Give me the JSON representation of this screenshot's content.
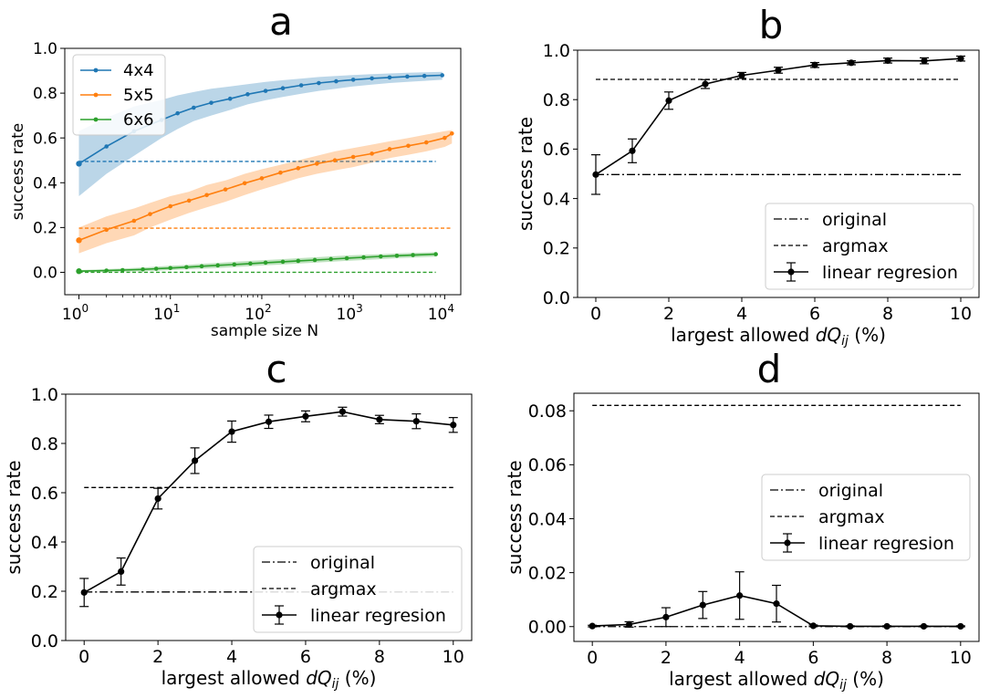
{
  "panels": {
    "a": {
      "letter": "a"
    },
    "b": {
      "letter": "b"
    },
    "c": {
      "letter": "c"
    },
    "d": {
      "letter": "d"
    }
  },
  "chart_data": [
    {
      "id": "a",
      "type": "line",
      "xscale": "log",
      "xlabel": "sample size N",
      "ylabel": "success rate",
      "xlim": [
        0.7,
        15000
      ],
      "ylim": [
        -0.1,
        1.0
      ],
      "xticks": [
        {
          "value": 1,
          "base": "10",
          "exp": "0"
        },
        {
          "value": 10,
          "base": "10",
          "exp": "1"
        },
        {
          "value": 100,
          "base": "10",
          "exp": "2"
        },
        {
          "value": 1000,
          "base": "10",
          "exp": "3"
        },
        {
          "value": 10000,
          "base": "10",
          "exp": "4"
        }
      ],
      "yticks": [
        "0.0",
        "0.2",
        "0.4",
        "0.6",
        "0.8",
        "1.0"
      ],
      "legend_position": "top-left",
      "grid": false,
      "series": [
        {
          "name": "4x4",
          "color": "#1f77b4",
          "x": [
            1,
            2,
            4,
            8,
            12,
            18,
            28,
            45,
            70,
            110,
            170,
            270,
            420,
            650,
            1000,
            1600,
            2500,
            3900,
            6000,
            9400
          ],
          "y": [
            0.485,
            0.562,
            0.63,
            0.68,
            0.71,
            0.735,
            0.757,
            0.775,
            0.795,
            0.81,
            0.822,
            0.835,
            0.845,
            0.853,
            0.86,
            0.866,
            0.87,
            0.874,
            0.877,
            0.88
          ],
          "band_low": [
            0.34,
            0.44,
            0.52,
            0.6,
            0.64,
            0.675,
            0.7,
            0.725,
            0.75,
            0.768,
            0.783,
            0.797,
            0.81,
            0.82,
            0.83,
            0.838,
            0.845,
            0.85,
            0.855,
            0.86
          ],
          "band_high": [
            0.63,
            0.69,
            0.74,
            0.77,
            0.79,
            0.805,
            0.82,
            0.83,
            0.84,
            0.85,
            0.858,
            0.865,
            0.872,
            0.877,
            0.881,
            0.885,
            0.888,
            0.891,
            0.893,
            0.895
          ],
          "baseline": 0.495,
          "baseline_xrange": [
            1,
            8000
          ]
        },
        {
          "name": "5x5",
          "color": "#ff7f0e",
          "x": [
            1,
            2,
            4,
            6,
            10,
            16,
            25,
            40,
            65,
            100,
            160,
            250,
            400,
            630,
            1000,
            1600,
            2500,
            4000,
            6300,
            10000,
            12000
          ],
          "y": [
            0.143,
            0.19,
            0.23,
            0.26,
            0.295,
            0.32,
            0.345,
            0.37,
            0.398,
            0.42,
            0.445,
            0.465,
            0.485,
            0.5,
            0.515,
            0.53,
            0.55,
            0.565,
            0.58,
            0.6,
            0.62
          ],
          "band_low": [
            0.085,
            0.13,
            0.165,
            0.2,
            0.235,
            0.265,
            0.29,
            0.315,
            0.345,
            0.37,
            0.395,
            0.42,
            0.44,
            0.455,
            0.47,
            0.49,
            0.51,
            0.525,
            0.54,
            0.56,
            0.575
          ],
          "band_high": [
            0.2,
            0.25,
            0.285,
            0.31,
            0.34,
            0.36,
            0.39,
            0.41,
            0.44,
            0.46,
            0.48,
            0.5,
            0.52,
            0.54,
            0.555,
            0.57,
            0.585,
            0.6,
            0.615,
            0.63,
            0.635
          ],
          "baseline": 0.197,
          "baseline_xrange": [
            1,
            12000
          ]
        },
        {
          "name": "6x6",
          "color": "#2ca02c",
          "x": [
            1,
            2,
            3,
            5,
            7,
            10,
            15,
            22,
            33,
            50,
            75,
            110,
            170,
            250,
            380,
            570,
            850,
            1300,
            2000,
            3000,
            4500,
            8000
          ],
          "y": [
            0.005,
            0.008,
            0.01,
            0.013,
            0.016,
            0.019,
            0.023,
            0.027,
            0.031,
            0.035,
            0.039,
            0.043,
            0.047,
            0.051,
            0.055,
            0.059,
            0.063,
            0.067,
            0.071,
            0.074,
            0.077,
            0.081
          ],
          "band_low": [
            0.0,
            0.002,
            0.003,
            0.005,
            0.007,
            0.01,
            0.013,
            0.016,
            0.019,
            0.023,
            0.027,
            0.031,
            0.035,
            0.039,
            0.043,
            0.047,
            0.051,
            0.055,
            0.059,
            0.063,
            0.066,
            0.07
          ],
          "band_high": [
            0.01,
            0.014,
            0.017,
            0.021,
            0.025,
            0.029,
            0.033,
            0.038,
            0.042,
            0.047,
            0.051,
            0.055,
            0.059,
            0.063,
            0.067,
            0.071,
            0.075,
            0.078,
            0.081,
            0.084,
            0.087,
            0.09
          ],
          "baseline": 0.0,
          "baseline_xrange": [
            1,
            8000
          ]
        }
      ]
    },
    {
      "id": "b",
      "type": "line",
      "xlabel_text": "largest allowed ",
      "xlabel_var": "dQ",
      "xlabel_sub": "ij",
      "xlabel_tail": " (%)",
      "ylabel": "success rate",
      "xlim": [
        -0.5,
        10.5
      ],
      "ylim": [
        0.0,
        1.0
      ],
      "xticks": [
        "0",
        "2",
        "4",
        "6",
        "8",
        "10"
      ],
      "yticks": [
        "0.0",
        "0.2",
        "0.4",
        "0.6",
        "0.8",
        "1.0"
      ],
      "legend_position": "bottom-right",
      "grid": false,
      "lines": {
        "original": 0.497,
        "argmax": 0.882,
        "xrange": [
          0,
          10
        ]
      },
      "legend": [
        "original",
        "argmax",
        "linear regresion"
      ],
      "series": [
        {
          "name": "linear regresion",
          "x": [
            0,
            1,
            2,
            3,
            4,
            5,
            6,
            7,
            8,
            9,
            10
          ],
          "y": [
            0.497,
            0.593,
            0.796,
            0.863,
            0.898,
            0.919,
            0.94,
            0.949,
            0.958,
            0.957,
            0.966
          ],
          "err": [
            0.08,
            0.048,
            0.035,
            0.018,
            0.012,
            0.012,
            0.01,
            0.008,
            0.01,
            0.012,
            0.01
          ]
        }
      ]
    },
    {
      "id": "c",
      "type": "line",
      "xlabel_text": "largest allowed ",
      "xlabel_var": "dQ",
      "xlabel_sub": "ij",
      "xlabel_tail": " (%)",
      "ylabel": "success rate",
      "xlim": [
        -0.5,
        10.5
      ],
      "ylim": [
        0.0,
        1.0
      ],
      "xticks": [
        "0",
        "2",
        "4",
        "6",
        "8",
        "10"
      ],
      "yticks": [
        "0.0",
        "0.2",
        "0.4",
        "0.6",
        "0.8",
        "1.0"
      ],
      "legend_position": "bottom-right",
      "grid": false,
      "lines": {
        "original": 0.197,
        "argmax": 0.621,
        "xrange": [
          0,
          10
        ]
      },
      "legend": [
        "original",
        "argmax",
        "linear regresion"
      ],
      "series": [
        {
          "name": "linear regresion",
          "x": [
            0,
            1,
            2,
            3,
            4,
            5,
            6,
            7,
            8,
            9,
            10
          ],
          "y": [
            0.195,
            0.28,
            0.576,
            0.73,
            0.848,
            0.888,
            0.91,
            0.929,
            0.897,
            0.89,
            0.875
          ],
          "err": [
            0.057,
            0.055,
            0.042,
            0.052,
            0.043,
            0.027,
            0.022,
            0.018,
            0.017,
            0.03,
            0.03
          ]
        }
      ]
    },
    {
      "id": "d",
      "type": "line",
      "xlabel_text": "largest allowed ",
      "xlabel_var": "dQ",
      "xlabel_sub": "ij",
      "xlabel_tail": " (%)",
      "ylabel": "success rate",
      "xlim": [
        -0.5,
        10.5
      ],
      "ylim": [
        -0.0055,
        0.0865
      ],
      "xticks": [
        "0",
        "2",
        "4",
        "6",
        "8",
        "10"
      ],
      "yticks": [
        "0.00",
        "0.02",
        "0.04",
        "0.06",
        "0.08"
      ],
      "legend_position": "center-right",
      "grid": false,
      "lines": {
        "original": 0.0,
        "argmax": 0.082,
        "xrange": [
          0,
          10
        ]
      },
      "legend": [
        "original",
        "argmax",
        "linear regresion"
      ],
      "series": [
        {
          "name": "linear regresion",
          "x": [
            0,
            1,
            2,
            3,
            4,
            5,
            6,
            7,
            8,
            9,
            10
          ],
          "y": [
            0.0002,
            0.0008,
            0.0035,
            0.008,
            0.0115,
            0.0085,
            0.0003,
            0.0001,
            0.0001,
            0.0001,
            0.0001
          ],
          "err": [
            0.0003,
            0.001,
            0.0035,
            0.005,
            0.0088,
            0.0068,
            0.0003,
            0.0002,
            0.0002,
            0.0002,
            0.0002
          ]
        }
      ]
    }
  ]
}
